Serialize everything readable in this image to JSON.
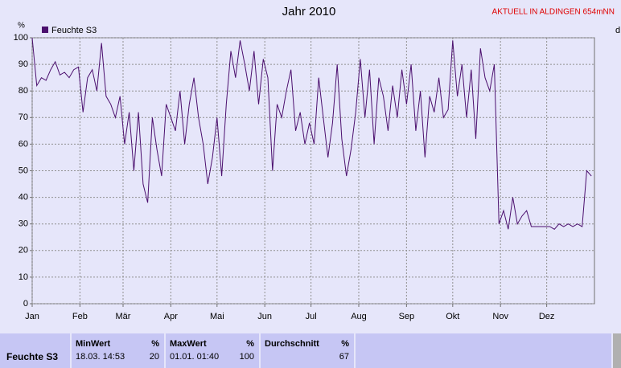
{
  "chart_data": {
    "type": "line",
    "title": "Jahr 2010",
    "y_label": "%",
    "note": "AKTUELL IN ALDINGEN 654mNN",
    "edge_label": "d",
    "x": [
      0,
      3,
      6,
      9,
      12,
      15,
      18,
      21,
      24,
      27,
      30,
      33,
      36,
      39,
      42,
      45,
      48,
      51,
      54,
      57,
      60,
      63,
      66,
      69,
      72,
      75,
      78,
      81,
      84,
      87,
      90,
      93,
      96,
      99,
      102,
      105,
      108,
      111,
      114,
      117,
      120,
      123,
      126,
      129,
      132,
      135,
      138,
      141,
      144,
      147,
      150,
      153,
      156,
      159,
      162,
      165,
      168,
      171,
      174,
      177,
      180,
      183,
      186,
      189,
      192,
      195,
      198,
      201,
      204,
      207,
      210,
      213,
      216,
      219,
      222,
      225,
      228,
      231,
      234,
      237,
      240,
      243,
      246,
      249,
      252,
      255,
      258,
      261,
      264,
      267,
      270,
      273,
      276,
      279,
      282,
      285,
      288,
      291,
      294,
      297,
      300,
      303,
      306,
      309,
      312,
      315,
      318,
      321,
      324,
      327,
      330,
      333,
      336,
      339,
      342,
      345,
      348,
      351,
      354,
      357,
      360,
      363
    ],
    "series": [
      {
        "name": "Feuchte S3",
        "color": "#4b0f6e",
        "values": [
          100,
          82,
          85,
          84,
          88,
          91,
          86,
          87,
          85,
          88,
          89,
          72,
          85,
          88,
          80,
          98,
          78,
          75,
          70,
          78,
          60,
          72,
          50,
          72,
          45,
          38,
          70,
          58,
          48,
          75,
          70,
          65,
          80,
          60,
          75,
          85,
          70,
          60,
          45,
          55,
          70,
          48,
          75,
          95,
          85,
          99,
          90,
          80,
          95,
          75,
          92,
          85,
          50,
          75,
          70,
          80,
          88,
          65,
          72,
          60,
          68,
          60,
          85,
          70,
          55,
          68,
          90,
          62,
          48,
          58,
          72,
          92,
          70,
          88,
          60,
          85,
          78,
          65,
          82,
          70,
          88,
          75,
          90,
          65,
          80,
          55,
          78,
          72,
          85,
          70,
          73,
          99,
          78,
          90,
          70,
          88,
          62,
          96,
          85,
          80,
          90,
          30,
          35,
          28,
          40,
          30,
          33,
          35,
          29,
          29,
          29,
          29,
          29,
          28,
          30,
          29,
          30,
          29,
          30,
          29,
          50,
          48
        ]
      }
    ],
    "xlim": [
      0,
      365
    ],
    "xticks": [
      {
        "value": 0,
        "label": "Jan"
      },
      {
        "value": 31,
        "label": "Feb"
      },
      {
        "value": 59,
        "label": "Mär"
      },
      {
        "value": 90,
        "label": "Apr"
      },
      {
        "value": 120,
        "label": "Mai"
      },
      {
        "value": 151,
        "label": "Jun"
      },
      {
        "value": 181,
        "label": "Jul"
      },
      {
        "value": 212,
        "label": "Aug"
      },
      {
        "value": 243,
        "label": "Sep"
      },
      {
        "value": 273,
        "label": "Okt"
      },
      {
        "value": 304,
        "label": "Nov"
      },
      {
        "value": 334,
        "label": "Dez"
      }
    ],
    "ylim": [
      0,
      100
    ],
    "yticks": [
      0,
      10,
      20,
      30,
      40,
      50,
      60,
      70,
      80,
      90,
      100
    ],
    "grid": true
  },
  "stats": {
    "name": "Feuchte S3",
    "columns": [
      {
        "title": "MinWert",
        "unit": "%",
        "time": "18.03. 14:53",
        "value": "20"
      },
      {
        "title": "MaxWert",
        "unit": "%",
        "time": "01.01. 01:40",
        "value": "100"
      },
      {
        "title": "Durchschnitt",
        "unit": "%",
        "value": "67"
      }
    ]
  }
}
